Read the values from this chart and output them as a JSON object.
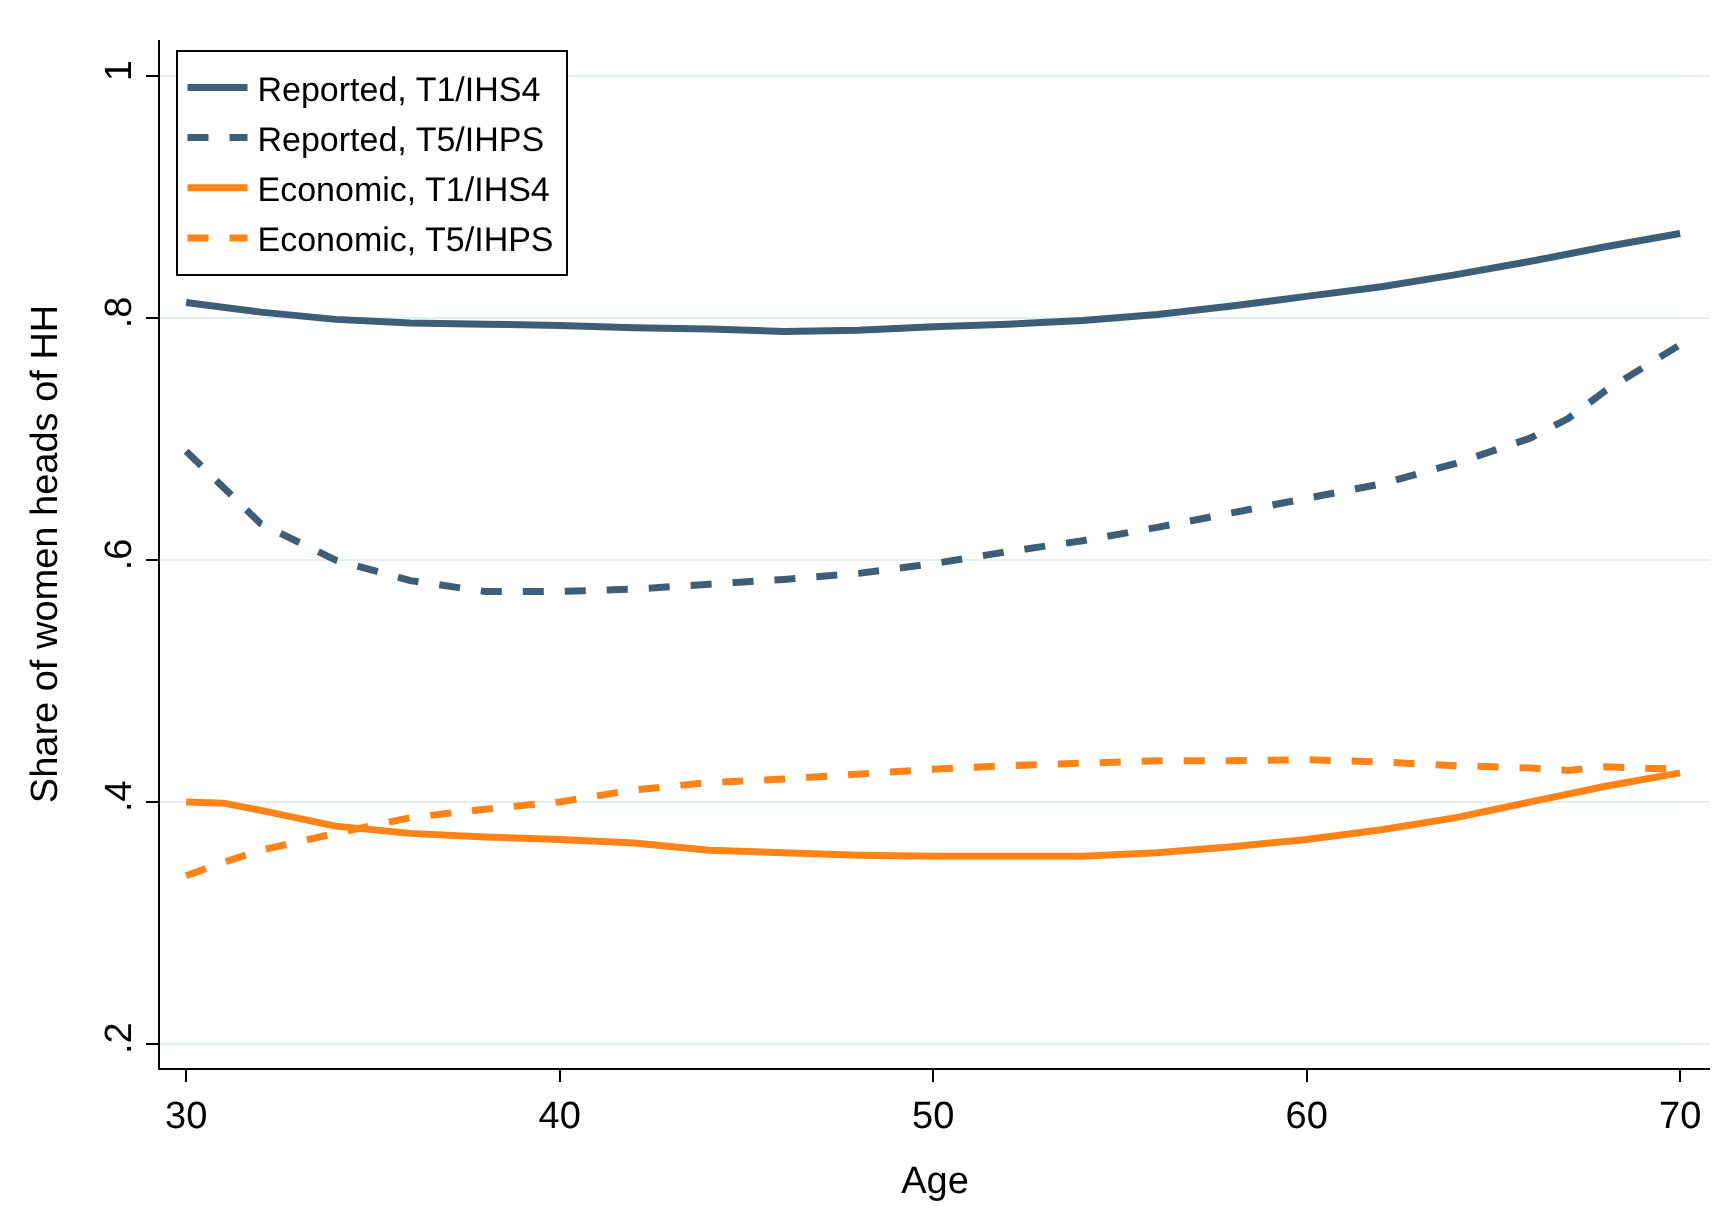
{
  "chart_data": {
    "type": "line",
    "xlabel": "Age",
    "ylabel": "Share of women heads of HH",
    "xlim": [
      29.3,
      70.8
    ],
    "xticks": [
      30,
      40,
      50,
      60,
      70
    ],
    "ylim": [
      0.18,
      1.03
    ],
    "yticks": [
      {
        "value": 0.2,
        "label": ".2"
      },
      {
        "value": 0.4,
        "label": ".4"
      },
      {
        "value": 0.6,
        "label": ".6"
      },
      {
        "value": 0.8,
        "label": ".8"
      },
      {
        "value": 1,
        "label": "1"
      }
    ],
    "grid": "y",
    "legend": "top left",
    "marker": "none",
    "series": [
      {
        "name": "Reported, T1/IHS4",
        "color": "#3e5d77",
        "line_style": "solid",
        "x": [
          30,
          32,
          34,
          36,
          38,
          40,
          42,
          44,
          46,
          48,
          50,
          52,
          54,
          56,
          58,
          60,
          62,
          64,
          66,
          68,
          70
        ],
        "values": [
          0.813,
          0.805,
          0.799,
          0.796,
          0.795,
          0.794,
          0.792,
          0.791,
          0.789,
          0.79,
          0.793,
          0.795,
          0.798,
          0.803,
          0.81,
          0.818,
          0.826,
          0.836,
          0.847,
          0.859,
          0.87
        ]
      },
      {
        "name": "Reported, T5/IHPS",
        "color": "#3e5d77",
        "line_style": "dashed",
        "x": [
          30,
          31,
          32,
          34,
          36,
          38,
          40,
          42,
          44,
          46,
          48,
          50,
          52,
          54,
          56,
          58,
          60,
          62,
          64,
          66,
          67,
          68,
          70
        ],
        "values": [
          0.69,
          0.66,
          0.63,
          0.6,
          0.583,
          0.574,
          0.574,
          0.576,
          0.58,
          0.584,
          0.589,
          0.597,
          0.607,
          0.616,
          0.627,
          0.639,
          0.651,
          0.663,
          0.68,
          0.701,
          0.717,
          0.74,
          0.778
        ]
      },
      {
        "name": "Economic, T1/IHS4",
        "color": "#ff8316",
        "line_style": "solid",
        "x": [
          30,
          31,
          32,
          34,
          36,
          38,
          40,
          42,
          44,
          46,
          48,
          50,
          52,
          54,
          56,
          58,
          60,
          62,
          64,
          66,
          68,
          70
        ],
        "values": [
          0.4,
          0.399,
          0.393,
          0.38,
          0.374,
          0.371,
          0.369,
          0.366,
          0.36,
          0.358,
          0.356,
          0.355,
          0.355,
          0.355,
          0.358,
          0.363,
          0.369,
          0.377,
          0.387,
          0.4,
          0.413,
          0.424
        ]
      },
      {
        "name": "Economic, T5/IHPS",
        "color": "#ff8316",
        "line_style": "dashed",
        "x": [
          30,
          31,
          32,
          34,
          36,
          38,
          40,
          42,
          44,
          46,
          48,
          50,
          52,
          54,
          56,
          58,
          60,
          62,
          64,
          66,
          67,
          68,
          70
        ],
        "values": [
          0.339,
          0.35,
          0.36,
          0.374,
          0.387,
          0.394,
          0.4,
          0.41,
          0.416,
          0.419,
          0.423,
          0.427,
          0.43,
          0.432,
          0.434,
          0.434,
          0.435,
          0.433,
          0.43,
          0.428,
          0.426,
          0.429,
          0.427
        ]
      }
    ]
  }
}
